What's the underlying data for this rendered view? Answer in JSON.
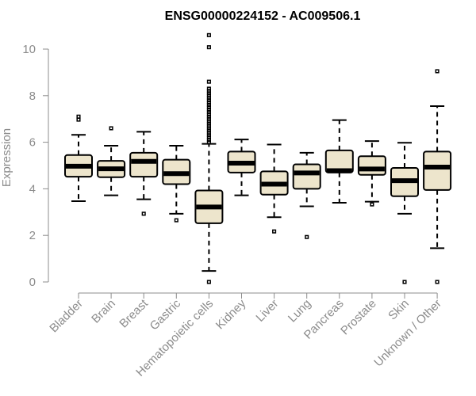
{
  "chart_data": {
    "type": "boxplot",
    "title": "ENSG00000224152 - AC009506.1",
    "ylabel": "Expression",
    "xlabel": "",
    "ylim": [
      0,
      10.6
    ],
    "yticks": [
      0,
      2,
      4,
      6,
      8,
      10
    ],
    "box_fill": "#ede5cc",
    "axis_color": "#8c8c8c",
    "categories": [
      "Bladder",
      "Brain",
      "Breast",
      "Gastric",
      "Hematopoietic cells",
      "Kidney",
      "Liver",
      "Lung",
      "Pancreas",
      "Prostate",
      "Skin",
      "Unknown / Other"
    ],
    "boxes": [
      {
        "name": "Bladder",
        "whisker_low": 3.47,
        "q1": 4.52,
        "median": 4.97,
        "q3": 5.45,
        "whisker_high": 6.32,
        "outliers": [
          6.97,
          7.1
        ]
      },
      {
        "name": "Brain",
        "whisker_low": 3.72,
        "q1": 4.5,
        "median": 4.86,
        "q3": 5.2,
        "whisker_high": 5.85,
        "outliers": [
          6.6
        ]
      },
      {
        "name": "Breast",
        "whisker_low": 3.55,
        "q1": 4.52,
        "median": 5.18,
        "q3": 5.55,
        "whisker_high": 6.45,
        "outliers": [
          2.93
        ]
      },
      {
        "name": "Gastric",
        "whisker_low": 2.93,
        "q1": 4.2,
        "median": 4.65,
        "q3": 5.25,
        "whisker_high": 5.85,
        "outliers": [
          2.65
        ]
      },
      {
        "name": "Hematopoietic cells",
        "whisker_low": 0.47,
        "q1": 2.52,
        "median": 3.22,
        "q3": 3.93,
        "whisker_high": 5.93,
        "outliers": [
          0.0,
          6.0,
          6.1,
          6.2,
          6.3,
          6.4,
          6.5,
          6.6,
          6.7,
          6.8,
          6.9,
          7.0,
          7.1,
          7.2,
          7.3,
          7.4,
          7.5,
          7.6,
          7.7,
          7.8,
          7.9,
          8.0,
          8.1,
          8.2,
          8.3,
          8.6,
          10.08,
          10.6
        ]
      },
      {
        "name": "Kidney",
        "whisker_low": 3.72,
        "q1": 4.7,
        "median": 5.1,
        "q3": 5.6,
        "whisker_high": 6.12,
        "outliers": []
      },
      {
        "name": "Liver",
        "whisker_low": 2.78,
        "q1": 3.75,
        "median": 4.2,
        "q3": 4.75,
        "whisker_high": 5.9,
        "outliers": [
          2.17
        ]
      },
      {
        "name": "Lung",
        "whisker_low": 3.25,
        "q1": 4.0,
        "median": 4.68,
        "q3": 5.05,
        "whisker_high": 5.55,
        "outliers": [
          1.93
        ]
      },
      {
        "name": "Pancreas",
        "whisker_low": 3.4,
        "q1": 4.7,
        "median": 4.78,
        "q3": 5.65,
        "whisker_high": 6.95,
        "outliers": []
      },
      {
        "name": "Prostate",
        "whisker_low": 3.45,
        "q1": 4.6,
        "median": 4.85,
        "q3": 5.4,
        "whisker_high": 6.05,
        "outliers": [
          3.33
        ]
      },
      {
        "name": "Skin",
        "whisker_low": 2.93,
        "q1": 3.68,
        "median": 4.35,
        "q3": 4.9,
        "whisker_high": 5.98,
        "outliers": [
          0.0
        ]
      },
      {
        "name": "Unknown / Other",
        "whisker_low": 1.45,
        "q1": 3.95,
        "median": 4.93,
        "q3": 5.6,
        "whisker_high": 7.55,
        "outliers": [
          0.0,
          9.05
        ]
      }
    ]
  }
}
